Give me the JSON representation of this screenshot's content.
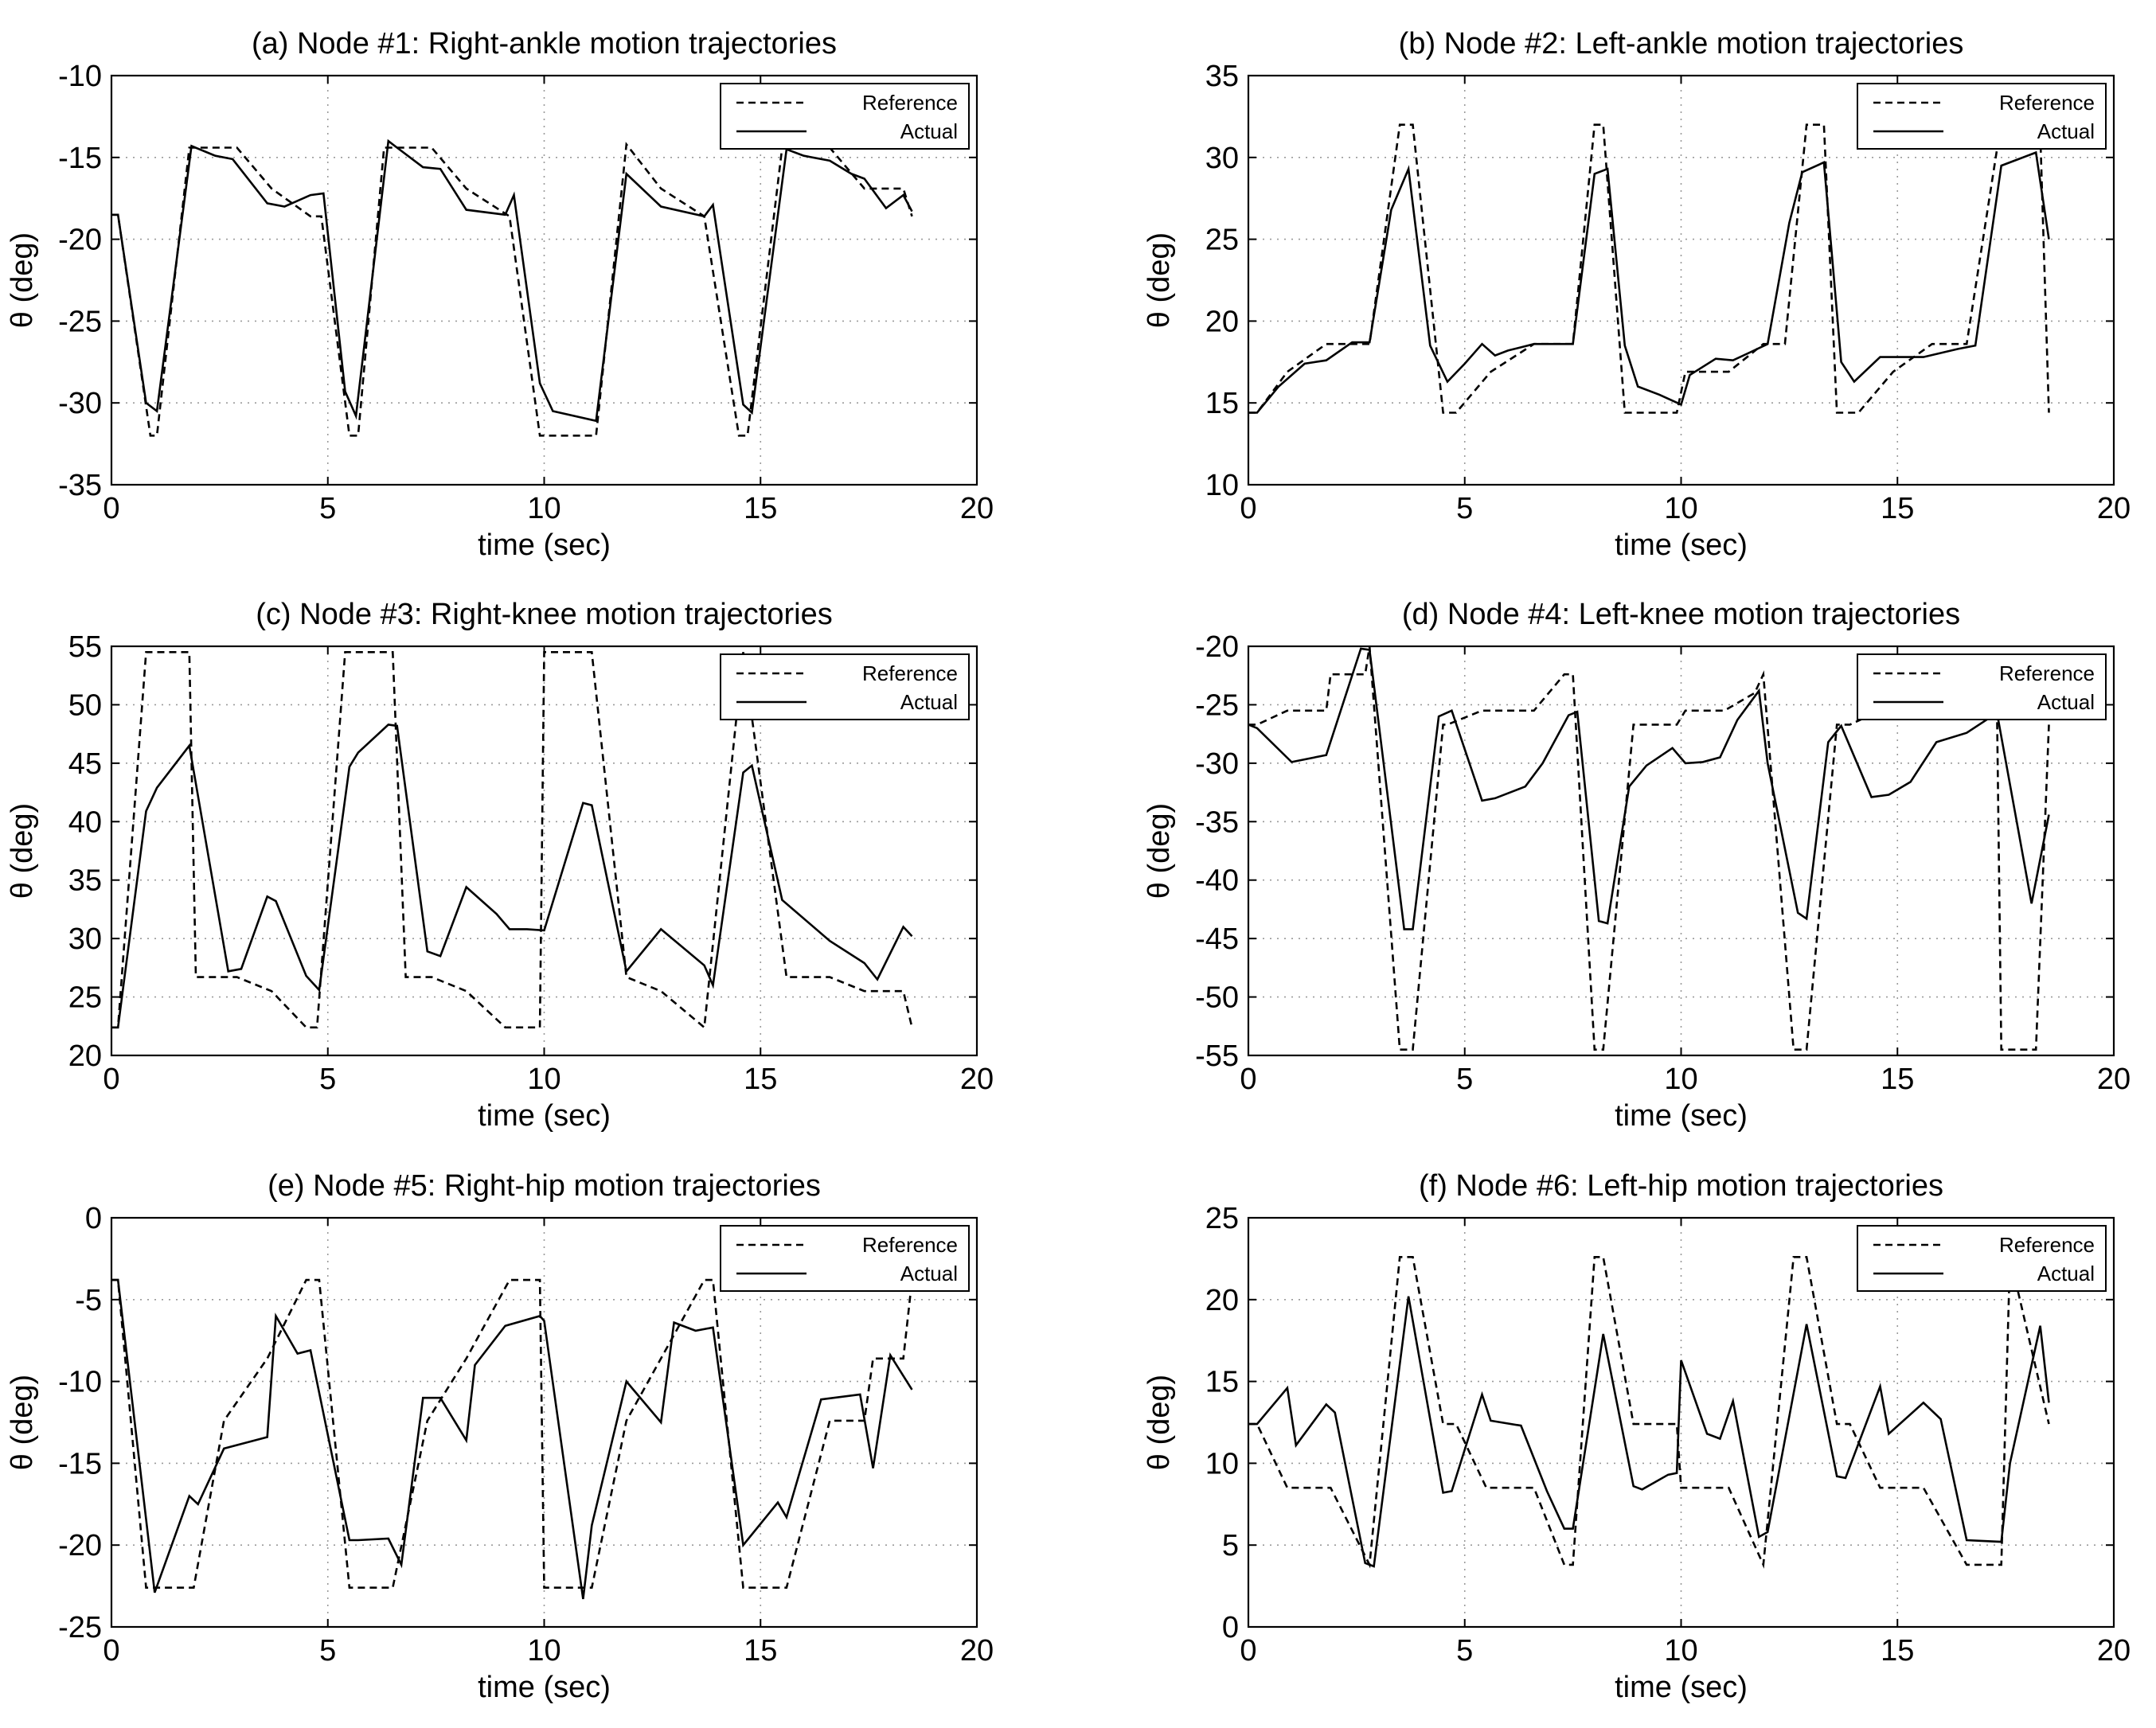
{
  "chart_data": [
    {
      "type": "line",
      "title": "(a) Node #1: Right-ankle motion trajectories",
      "xlabel": "time (sec)",
      "ylabel": "θ (deg)",
      "xlim": [
        0,
        20
      ],
      "ylim": [
        -35,
        -10
      ],
      "xticks": [
        "0",
        "5",
        "10",
        "15",
        "20"
      ],
      "yticks": [
        "-35",
        "-30",
        "-25",
        "-20",
        "-15",
        "-10"
      ],
      "grid": true,
      "legend": {
        "position": "top-right",
        "entries": [
          "Reference",
          "Actual"
        ]
      },
      "series": [
        {
          "name": "Reference",
          "x": [
            0,
            0.15,
            0.9,
            1.05,
            1.8,
            2.9,
            3.7,
            4.6,
            4.85,
            5.5,
            5.7,
            6.3,
            7.4,
            8.2,
            9.2,
            9.9,
            11.0,
            11.2,
            11.9,
            12.7,
            13.7,
            14.5,
            14.7,
            15.5,
            16.6,
            17.4,
            18.3,
            18.5
          ],
          "y": [
            -18.5,
            -18.5,
            -32,
            -32,
            -14.4,
            -14.4,
            -16.9,
            -18.6,
            -18.6,
            -32,
            -32,
            -14.4,
            -14.4,
            -16.9,
            -18.6,
            -32,
            -32,
            -32,
            -14.2,
            -16.9,
            -18.6,
            -32,
            -32,
            -14.4,
            -14.4,
            -16.9,
            -16.9,
            -18.6
          ]
        },
        {
          "name": "Actual",
          "x": [
            0,
            0.15,
            0.8,
            1.05,
            1.85,
            2.4,
            2.8,
            3.6,
            4.0,
            4.6,
            4.9,
            5.4,
            5.65,
            6.4,
            6.6,
            7.2,
            7.6,
            8.2,
            9.1,
            9.3,
            9.9,
            10.2,
            11.2,
            11.9,
            12.7,
            13.7,
            13.9,
            14.6,
            14.8,
            15.6,
            16.0,
            16.6,
            17.1,
            17.4,
            17.9,
            18.3,
            18.5
          ],
          "y": [
            -18.5,
            -18.5,
            -30,
            -30.5,
            -14.3,
            -14.9,
            -15.1,
            -17.8,
            -18.0,
            -17.3,
            -17.2,
            -29.3,
            -30.8,
            -14.0,
            -14.4,
            -15.6,
            -15.7,
            -18.2,
            -18.5,
            -17.3,
            -28.8,
            -30.5,
            -31.1,
            -16.0,
            -18.0,
            -18.6,
            -17.9,
            -30.1,
            -30.6,
            -14.5,
            -14.9,
            -15.2,
            -16.0,
            -16.3,
            -18.1,
            -17.3,
            -18.3
          ]
        }
      ]
    },
    {
      "type": "line",
      "title": "(b) Node #2: Left-ankle motion trajectories",
      "xlabel": "time (sec)",
      "ylabel": "θ (deg)",
      "xlim": [
        0,
        20
      ],
      "ylim": [
        10,
        35
      ],
      "xticks": [
        "0",
        "5",
        "10",
        "15",
        "20"
      ],
      "yticks": [
        "10",
        "15",
        "20",
        "25",
        "30",
        "35"
      ],
      "grid": true,
      "legend": {
        "position": "top-right",
        "entries": [
          "Reference",
          "Actual"
        ]
      },
      "series": [
        {
          "name": "Reference",
          "x": [
            0,
            0.2,
            0.9,
            1.8,
            2.8,
            3.5,
            3.8,
            4.5,
            4.8,
            5.6,
            6.6,
            7.5,
            8.0,
            8.2,
            8.7,
            9.9,
            10.1,
            11.1,
            11.9,
            12.4,
            12.9,
            13.3,
            13.6,
            14.1,
            14.9,
            15.8,
            16.6,
            17.3,
            17.7,
            18.3,
            18.5
          ],
          "y": [
            14.4,
            14.4,
            16.9,
            18.6,
            18.6,
            32,
            32,
            14.4,
            14.4,
            16.9,
            18.6,
            18.6,
            32,
            32,
            14.4,
            14.4,
            16.9,
            16.9,
            18.6,
            18.6,
            32,
            32,
            14.4,
            14.4,
            16.9,
            18.6,
            18.6,
            30.5,
            31.5,
            31.5,
            14.4
          ]
        },
        {
          "name": "Actual",
          "x": [
            0,
            0.2,
            0.7,
            1.3,
            1.8,
            2.4,
            2.8,
            3.3,
            3.7,
            4.2,
            4.6,
            5.0,
            5.4,
            5.7,
            6.0,
            6.6,
            7.1,
            7.5,
            8.0,
            8.3,
            8.7,
            9.0,
            9.5,
            10.0,
            10.2,
            10.8,
            11.2,
            11.6,
            12.0,
            12.5,
            12.8,
            13.3,
            13.7,
            14.0,
            14.6,
            15.1,
            15.6,
            16.4,
            16.8,
            17.4,
            17.8,
            18.2,
            18.5
          ],
          "y": [
            14.4,
            14.4,
            16.0,
            17.4,
            17.6,
            18.7,
            18.7,
            26.8,
            29.3,
            18.5,
            16.3,
            17.4,
            18.6,
            17.9,
            18.2,
            18.6,
            18.6,
            18.6,
            29.0,
            29.3,
            18.5,
            16.0,
            15.5,
            14.9,
            16.7,
            17.7,
            17.6,
            18.1,
            18.6,
            26.0,
            29.1,
            29.7,
            17.5,
            16.3,
            17.8,
            17.8,
            17.8,
            18.3,
            18.5,
            29.5,
            29.9,
            30.3,
            25.0
          ]
        }
      ]
    },
    {
      "type": "line",
      "title": "(c) Node #3: Right-knee motion trajectories",
      "xlabel": "time (sec)",
      "ylabel": "θ (deg)",
      "xlim": [
        0,
        20
      ],
      "ylim": [
        20,
        55
      ],
      "xticks": [
        "0",
        "5",
        "10",
        "15",
        "20"
      ],
      "yticks": [
        "20",
        "25",
        "30",
        "35",
        "40",
        "45",
        "50",
        "55"
      ],
      "grid": true,
      "legend": {
        "position": "top-right",
        "entries": [
          "Reference",
          "Actual"
        ]
      },
      "series": [
        {
          "name": "Reference",
          "x": [
            0,
            0.15,
            0.8,
            1.8,
            1.95,
            2.9,
            3.7,
            4.5,
            4.75,
            5.4,
            6.5,
            6.8,
            7.4,
            8.2,
            9.1,
            9.9,
            10.0,
            11.1,
            11.9,
            12.7,
            13.7,
            14.6,
            15.6,
            16.6,
            17.4,
            18.3,
            18.5
          ],
          "y": [
            22.4,
            22.4,
            54.5,
            54.5,
            26.7,
            26.7,
            25.5,
            22.4,
            22.4,
            54.5,
            54.5,
            26.7,
            26.7,
            25.5,
            22.4,
            22.4,
            54.5,
            54.5,
            26.7,
            25.5,
            22.4,
            54.5,
            26.7,
            26.7,
            25.5,
            25.5,
            22.4
          ]
        },
        {
          "name": "Actual",
          "x": [
            0,
            0.15,
            0.8,
            1.05,
            1.8,
            2.7,
            3.0,
            3.6,
            3.8,
            4.5,
            4.8,
            5.5,
            5.7,
            6.4,
            6.6,
            7.3,
            7.6,
            8.2,
            8.9,
            9.2,
            9.6,
            10.0,
            10.9,
            11.1,
            11.9,
            12.7,
            13.7,
            13.9,
            14.6,
            14.8,
            15.5,
            16.6,
            17.4,
            17.7,
            18.3,
            18.5
          ],
          "y": [
            22.4,
            22.4,
            40.9,
            42.9,
            46.5,
            27.2,
            27.4,
            33.6,
            33.2,
            26.8,
            25.6,
            44.7,
            45.9,
            48.3,
            48.2,
            28.9,
            28.5,
            34.4,
            32.1,
            30.8,
            30.8,
            30.7,
            41.6,
            41.4,
            27.2,
            30.8,
            27.7,
            26.0,
            44.2,
            44.8,
            33.3,
            29.8,
            27.9,
            26.5,
            31.0,
            30.2
          ]
        }
      ]
    },
    {
      "type": "line",
      "title": "(d) Node #4: Left-knee motion trajectories",
      "xlabel": "time (sec)",
      "ylabel": "θ (deg)",
      "xlim": [
        0,
        20
      ],
      "ylim": [
        -55,
        -20
      ],
      "xticks": [
        "0",
        "5",
        "10",
        "15",
        "20"
      ],
      "yticks": [
        "-55",
        "-50",
        "-45",
        "-40",
        "-35",
        "-30",
        "-25",
        "-20"
      ],
      "grid": true,
      "legend": {
        "position": "top-right",
        "entries": [
          "Reference",
          "Actual"
        ]
      },
      "series": [
        {
          "name": "Reference",
          "x": [
            0,
            0.2,
            0.9,
            1.8,
            1.9,
            2.7,
            2.8,
            3.5,
            3.8,
            4.5,
            4.6,
            5.4,
            6.6,
            7.3,
            7.5,
            8.0,
            8.2,
            8.9,
            9.9,
            10.1,
            11.0,
            11.7,
            11.9,
            12.6,
            12.9,
            13.6,
            13.9,
            14.6,
            14.9,
            15.6,
            16.6,
            17.3,
            17.4,
            18.2,
            18.5
          ],
          "y": [
            -26.7,
            -26.7,
            -25.5,
            -25.5,
            -22.4,
            -22.4,
            -20.0,
            -54.5,
            -54.5,
            -26.7,
            -26.7,
            -25.5,
            -25.5,
            -22.4,
            -22.4,
            -54.5,
            -54.5,
            -26.7,
            -26.7,
            -25.5,
            -25.5,
            -24.0,
            -22.4,
            -54.5,
            -54.5,
            -26.7,
            -26.7,
            -25.5,
            -25.5,
            -25.5,
            -25.5,
            -25.5,
            -54.5,
            -54.5,
            -26.7
          ]
        },
        {
          "name": "Actual",
          "x": [
            0,
            0.2,
            1.0,
            1.8,
            2.6,
            2.8,
            3.6,
            3.8,
            4.4,
            4.7,
            5.4,
            5.7,
            6.4,
            6.8,
            7.4,
            7.6,
            8.1,
            8.3,
            8.8,
            9.2,
            9.8,
            10.1,
            10.5,
            10.9,
            11.3,
            11.8,
            12.0,
            12.7,
            12.9,
            13.4,
            13.7,
            14.4,
            14.8,
            15.3,
            15.9,
            16.6,
            17.3,
            18.1,
            18.5
          ],
          "y": [
            -26.7,
            -27.0,
            -29.9,
            -29.3,
            -20.2,
            -20.3,
            -44.2,
            -44.2,
            -26.0,
            -25.5,
            -33.2,
            -33.0,
            -32.0,
            -30.0,
            -25.9,
            -25.6,
            -43.5,
            -43.7,
            -32.0,
            -30.2,
            -28.7,
            -30.0,
            -29.9,
            -29.5,
            -26.3,
            -23.8,
            -30.0,
            -42.8,
            -43.3,
            -28.2,
            -26.8,
            -32.9,
            -32.7,
            -31.6,
            -28.2,
            -27.4,
            -25.7,
            -42.0,
            -34.4
          ]
        }
      ]
    },
    {
      "type": "line",
      "title": "(e) Node #5: Right-hip motion trajectories",
      "xlabel": "time (sec)",
      "ylabel": "θ (deg)",
      "xlim": [
        0,
        20
      ],
      "ylim": [
        -25,
        0
      ],
      "xticks": [
        "0",
        "5",
        "10",
        "15",
        "20"
      ],
      "yticks": [
        "-25",
        "-20",
        "-15",
        "-10",
        "-5",
        "0"
      ],
      "grid": true,
      "legend": {
        "position": "top-right",
        "entries": [
          "Reference",
          "Actual"
        ]
      },
      "series": [
        {
          "name": "Reference",
          "x": [
            0,
            0.15,
            0.8,
            1.9,
            2.6,
            3.6,
            4.5,
            4.8,
            5.5,
            6.5,
            7.3,
            8.2,
            9.2,
            9.9,
            10.0,
            11.1,
            11.9,
            12.7,
            13.7,
            13.9,
            14.6,
            15.6,
            16.6,
            17.4,
            17.6,
            18.3,
            18.5
          ],
          "y": [
            -3.8,
            -3.8,
            -22.6,
            -22.6,
            -12.4,
            -8.6,
            -3.8,
            -3.8,
            -22.6,
            -22.6,
            -12.4,
            -8.6,
            -3.8,
            -3.8,
            -22.6,
            -22.6,
            -12.4,
            -8.6,
            -3.8,
            -3.8,
            -22.6,
            -22.6,
            -12.4,
            -12.4,
            -8.6,
            -8.6,
            -3.8
          ]
        },
        {
          "name": "Actual",
          "x": [
            0,
            0.15,
            1.0,
            1.8,
            2.0,
            2.6,
            3.6,
            3.8,
            4.3,
            4.6,
            5.5,
            5.7,
            6.4,
            6.7,
            7.2,
            7.6,
            8.2,
            8.4,
            9.1,
            9.9,
            10.0,
            10.9,
            11.1,
            11.9,
            12.7,
            13.0,
            13.5,
            13.9,
            14.6,
            15.4,
            15.6,
            16.4,
            17.3,
            17.6,
            18.0,
            18.5
          ],
          "y": [
            -3.8,
            -3.8,
            -22.9,
            -17.0,
            -17.5,
            -14.1,
            -13.4,
            -6.0,
            -8.3,
            -8.1,
            -19.7,
            -19.7,
            -19.6,
            -21.2,
            -11.0,
            -11.0,
            -13.6,
            -9.0,
            -6.6,
            -6.0,
            -6.3,
            -23.3,
            -18.8,
            -10.0,
            -12.5,
            -6.4,
            -6.9,
            -6.7,
            -20.0,
            -17.4,
            -18.3,
            -11.1,
            -10.8,
            -15.3,
            -8.4,
            -10.5
          ]
        }
      ]
    },
    {
      "type": "line",
      "title": "(f) Node #6: Left-hip motion trajectories",
      "xlabel": "time (sec)",
      "ylabel": "θ (deg)",
      "xlim": [
        0,
        20
      ],
      "ylim": [
        0,
        25
      ],
      "xticks": [
        "0",
        "5",
        "10",
        "15",
        "20"
      ],
      "yticks": [
        "0",
        "5",
        "10",
        "15",
        "20",
        "25"
      ],
      "grid": true,
      "legend": {
        "position": "top-right",
        "entries": [
          "Reference",
          "Actual"
        ]
      },
      "series": [
        {
          "name": "Reference",
          "x": [
            0,
            0.2,
            0.9,
            1.9,
            2.8,
            3.5,
            3.8,
            4.5,
            4.8,
            5.5,
            6.6,
            7.3,
            7.5,
            8.0,
            8.2,
            8.9,
            9.9,
            10.0,
            11.1,
            11.9,
            12.6,
            12.9,
            13.6,
            13.9,
            14.6,
            15.6,
            16.6,
            17.4,
            17.6,
            18.5
          ],
          "y": [
            12.4,
            12.4,
            8.5,
            8.5,
            3.8,
            22.6,
            22.6,
            12.4,
            12.4,
            8.5,
            8.5,
            3.8,
            3.8,
            22.6,
            22.6,
            12.4,
            12.4,
            8.5,
            8.5,
            3.8,
            22.6,
            22.6,
            12.4,
            12.4,
            8.5,
            8.5,
            3.8,
            3.8,
            22.6,
            12.4
          ]
        },
        {
          "name": "Actual",
          "x": [
            0,
            0.2,
            0.9,
            1.1,
            1.8,
            2.0,
            2.7,
            2.9,
            3.7,
            4.5,
            4.7,
            5.4,
            5.6,
            6.3,
            6.9,
            7.3,
            7.5,
            8.2,
            8.9,
            9.1,
            9.7,
            9.9,
            10.0,
            10.6,
            10.9,
            11.2,
            11.8,
            12.0,
            12.9,
            13.6,
            13.8,
            14.6,
            14.8,
            15.6,
            16.0,
            16.6,
            17.4,
            17.6,
            18.3,
            18.5
          ],
          "y": [
            12.4,
            12.4,
            14.6,
            11.1,
            13.6,
            13.1,
            3.9,
            3.7,
            20.2,
            8.2,
            8.3,
            14.2,
            12.6,
            12.3,
            8.3,
            6.0,
            6.0,
            17.9,
            8.6,
            8.4,
            9.3,
            9.4,
            16.3,
            11.8,
            11.5,
            13.8,
            5.5,
            5.8,
            18.5,
            9.2,
            9.1,
            14.7,
            11.8,
            13.7,
            12.7,
            5.3,
            5.2,
            10.0,
            18.4,
            13.7
          ]
        }
      ]
    }
  ]
}
